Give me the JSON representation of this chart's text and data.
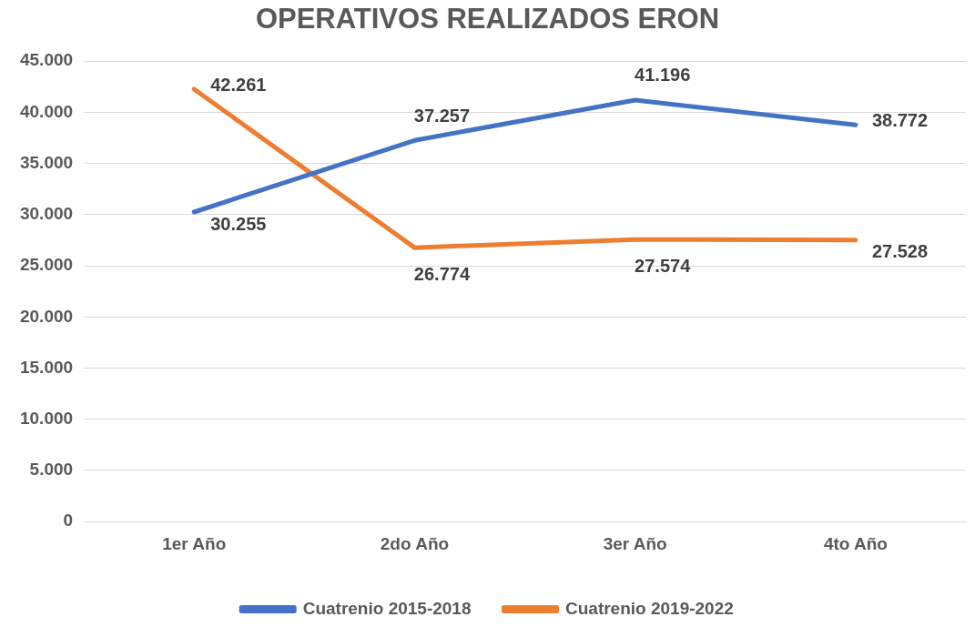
{
  "chart_data": {
    "type": "line",
    "title": "OPERATIVOS REALIZADOS ERON",
    "categories": [
      "1er Año",
      "2do Año",
      "3er Año",
      "4to Año"
    ],
    "series": [
      {
        "name": "Cuatrenio 2015-2018",
        "color": "#4472c4",
        "values": [
          30255,
          37257,
          41196,
          38772
        ],
        "value_labels": [
          "30.255",
          "37.257",
          "41.196",
          "38.772"
        ]
      },
      {
        "name": "Cuatrenio 2019-2022",
        "color": "#ed7d31",
        "values": [
          42261,
          26774,
          27574,
          27528
        ],
        "value_labels": [
          "42.261",
          "26.774",
          "27.574",
          "27.528"
        ]
      }
    ],
    "ylim": [
      0,
      45000
    ],
    "yticks": [
      {
        "value": 0,
        "label": "0"
      },
      {
        "value": 5000,
        "label": "5.000"
      },
      {
        "value": 10000,
        "label": "10.000"
      },
      {
        "value": 15000,
        "label": "15.000"
      },
      {
        "value": 20000,
        "label": "20.000"
      },
      {
        "value": 25000,
        "label": "25.000"
      },
      {
        "value": 30000,
        "label": "30.000"
      },
      {
        "value": 35000,
        "label": "35.000"
      },
      {
        "value": 40000,
        "label": "40.000"
      },
      {
        "value": 45000,
        "label": "45.000"
      }
    ],
    "grid": "y",
    "legend": "bottom",
    "marker": "none",
    "line_style": "solid"
  }
}
